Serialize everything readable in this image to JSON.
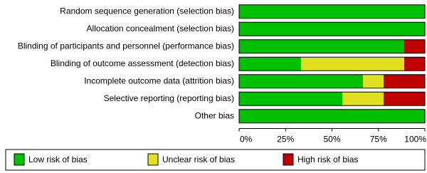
{
  "chart_data": {
    "type": "stacked-bar-horizontal",
    "categories": [
      "Random sequence generation (selection bias)",
      "Allocation concealment (selection bias)",
      "Blinding of participants and personnel (performance bias)",
      "Blinding of outcome assessment (detection bias)",
      "Incomplete outcome data (attrition bias)",
      "Selective reporting (reporting bias)",
      "Other bias"
    ],
    "series": [
      {
        "name": "Low risk of bias",
        "color": "#00c000",
        "values": [
          100,
          100,
          88.9,
          33.3,
          66.7,
          55.6,
          100
        ]
      },
      {
        "name": "Unclear risk of bias",
        "color": "#e0e020",
        "values": [
          0,
          0,
          0,
          55.6,
          11.1,
          22.2,
          0
        ]
      },
      {
        "name": "High risk of bias",
        "color": "#c00000",
        "values": [
          0,
          0,
          11.1,
          11.1,
          22.2,
          22.2,
          0
        ]
      }
    ],
    "xlim": [
      0,
      100
    ],
    "xticks": [
      {
        "value": 0,
        "label": "0%"
      },
      {
        "value": 25,
        "label": "25%"
      },
      {
        "value": 50,
        "label": "50%"
      },
      {
        "value": 75,
        "label": "75%"
      },
      {
        "value": 100,
        "label": "100%"
      }
    ],
    "legend": "bottom"
  }
}
